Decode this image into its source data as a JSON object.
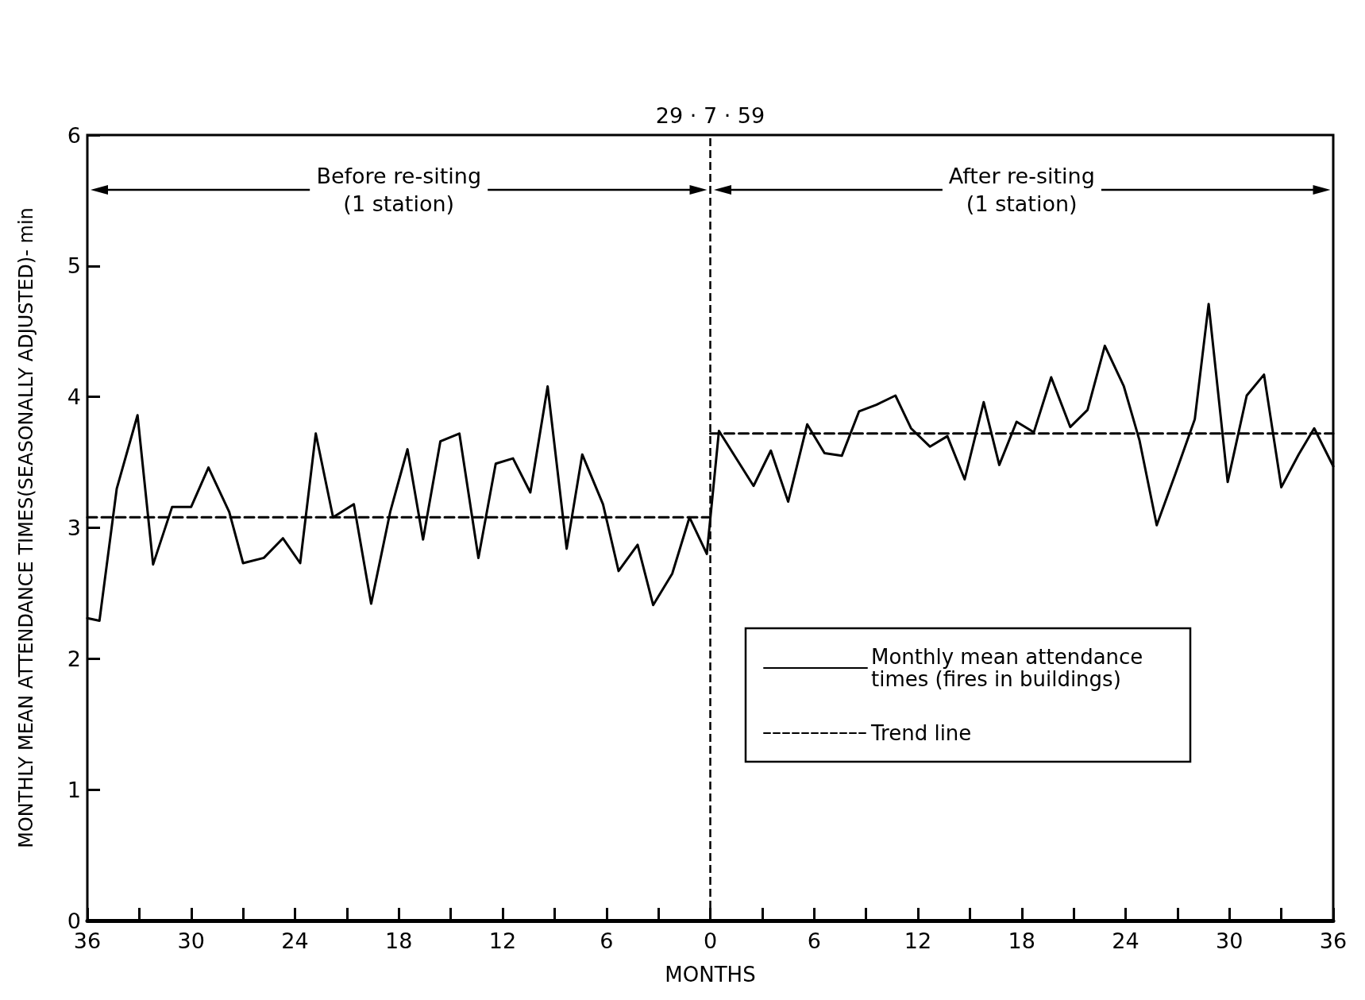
{
  "chart_data": {
    "type": "line",
    "xlabel": "MONTHS",
    "ylabel": "MONTHLY MEAN ATTENDANCE TIMES(SEASONALLY ADJUSTED)- min",
    "xlim": [
      -36,
      36
    ],
    "xticks": [
      {
        "value": -36,
        "label": "36"
      },
      {
        "value": -33,
        "label": null
      },
      {
        "value": -30,
        "label": "30"
      },
      {
        "value": -27,
        "label": null
      },
      {
        "value": -24,
        "label": "24"
      },
      {
        "value": -21,
        "label": null
      },
      {
        "value": -18,
        "label": "18"
      },
      {
        "value": -15,
        "label": null
      },
      {
        "value": -12,
        "label": "12"
      },
      {
        "value": -9,
        "label": null
      },
      {
        "value": -6,
        "label": "6"
      },
      {
        "value": -3,
        "label": null
      },
      0,
      {
        "value": 3,
        "label": null
      },
      6,
      {
        "value": 9,
        "label": null
      },
      12,
      {
        "value": 15,
        "label": null
      },
      18,
      {
        "value": 21,
        "label": null
      },
      24,
      {
        "value": 27,
        "label": null
      },
      30,
      {
        "value": 33,
        "label": null
      },
      36
    ],
    "ylim": [
      0,
      6
    ],
    "yticks": [
      0,
      1,
      2,
      3,
      4,
      5,
      6
    ],
    "grid": false,
    "legend": "bottom right",
    "marker": "none",
    "series": [
      {
        "name": "Monthly mean attendance times (fires in buildings)",
        "color": "#000000",
        "line_style": "solid",
        "x": [
          -36,
          -35.3,
          -34.3,
          -33.1,
          -32.2,
          -31.1,
          -30,
          -29,
          -27.8,
          -27,
          -25.8,
          -24.7,
          -23.7,
          -22.8,
          -21.8,
          -20.6,
          -19.6,
          -18.5,
          -17.5,
          -16.6,
          -15.6,
          -14.5,
          -13.4,
          -12.4,
          -11.4,
          -10.4,
          -9.4,
          -8.3,
          -7.4,
          -6.2,
          -5.3,
          -4.2,
          -3.3,
          -2.2,
          -1.2,
          -0.2,
          0.5,
          2.5,
          3.5,
          4.5,
          5.6,
          6.6,
          7.6,
          8.6,
          9.6,
          10.7,
          11.6,
          12.7,
          13.7,
          14.7,
          15.8,
          16.7,
          17.7,
          18.7,
          19.7,
          20.8,
          21.8,
          22.8,
          23.9,
          24.8,
          25.8,
          26.9,
          28.0,
          28.8,
          29.9,
          31.0,
          32.0,
          33.0,
          34.0,
          34.9,
          36
        ],
        "values": [
          2.31,
          2.29,
          3.3,
          3.86,
          2.72,
          3.16,
          3.16,
          3.46,
          3.12,
          2.73,
          2.77,
          2.92,
          2.73,
          3.72,
          3.08,
          3.18,
          2.42,
          3.12,
          3.6,
          2.91,
          3.66,
          3.72,
          2.77,
          3.49,
          3.53,
          3.27,
          4.08,
          2.84,
          3.56,
          3.18,
          2.67,
          2.87,
          2.41,
          2.65,
          3.08,
          2.8,
          3.74,
          3.32,
          3.59,
          3.2,
          3.79,
          3.57,
          3.55,
          3.89,
          3.94,
          4.01,
          3.76,
          3.62,
          3.7,
          3.37,
          3.96,
          3.48,
          3.81,
          3.73,
          4.15,
          3.77,
          3.9,
          4.39,
          4.08,
          3.67,
          3.02,
          3.42,
          3.83,
          4.71,
          3.35,
          4.01,
          4.17,
          3.31,
          3.56,
          3.76,
          3.47
        ]
      },
      {
        "name": "Trend line",
        "color": "#000000",
        "line_style": "dashed",
        "x": [
          -36,
          0
        ],
        "values": [
          3.08,
          3.08
        ]
      },
      {
        "color": "#000000",
        "line_style": "dashed",
        "x": [
          0,
          36
        ],
        "values": [
          3.72,
          3.72
        ]
      }
    ],
    "ref_lines": [
      {
        "axis": "x",
        "value": 0,
        "color": "#000000",
        "line_style": "dashed"
      }
    ],
    "annotations": [
      "Before re-siting\n(1 station)",
      "After re-siting\n(1 station)",
      {
        "text": "29 · 7 · 59",
        "x": 0,
        "y": 6
      }
    ]
  }
}
